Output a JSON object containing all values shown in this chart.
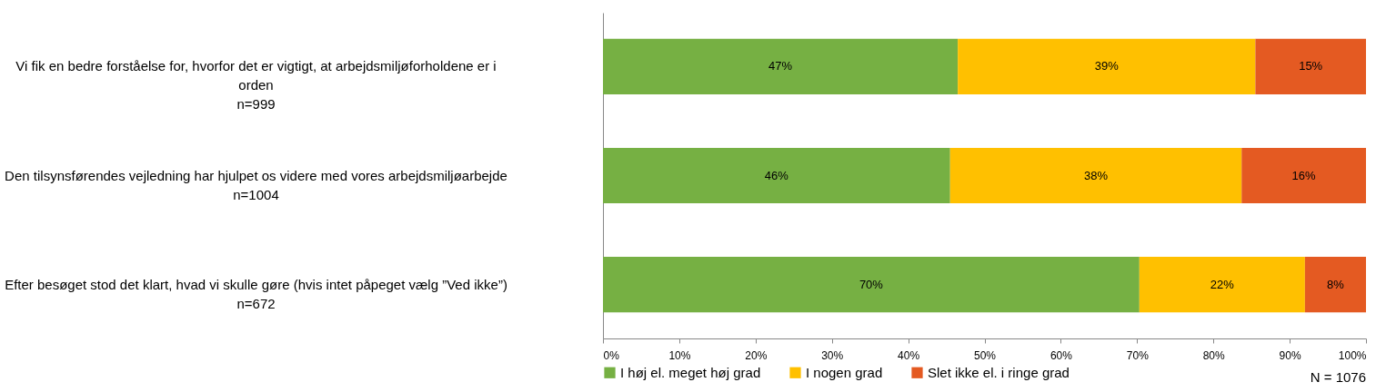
{
  "chart_data": {
    "type": "bar",
    "orientation": "horizontal",
    "stacked": true,
    "categories": [
      "Vi fik en bedre forståelse for, hvorfor det er vigtigt, at arbejdsmiljøforholdene er i orden\nn=999",
      "Den tilsynsførendes vejledning har hjulpet os videre med vores arbejdsmiljøarbejde\nn=1004",
      "Efter besøget stod det klart, hvad vi skulle gøre (hvis intet påpeget vælg ”Ved ikke”)\nn=672"
    ],
    "series": [
      {
        "name": "I høj el. meget høj grad",
        "color": "#76b043",
        "values": [
          46.5,
          45.5,
          70.3
        ],
        "value_labels": [
          "47%",
          "46%",
          "70%"
        ]
      },
      {
        "name": "I nogen grad",
        "color": "#ffc000",
        "values": [
          39,
          38.2,
          21.7
        ],
        "value_labels": [
          "39%",
          "38%",
          "22%"
        ]
      },
      {
        "name": "Slet ikke el. i ringe grad",
        "color": "#e45a22",
        "values": [
          14.5,
          16.3,
          8
        ],
        "value_labels": [
          "15%",
          "16%",
          "8%"
        ]
      }
    ],
    "xlim": [
      0,
      100
    ],
    "xticks": [
      {
        "value": 0,
        "label": "0%"
      },
      {
        "value": 10,
        "label": "10%"
      },
      {
        "value": 20,
        "label": "20%"
      },
      {
        "value": 30,
        "label": "30%"
      },
      {
        "value": 40,
        "label": "40%"
      },
      {
        "value": 50,
        "label": "50%"
      },
      {
        "value": 60,
        "label": "60%"
      },
      {
        "value": 70,
        "label": "70%"
      },
      {
        "value": 80,
        "label": "80%"
      },
      {
        "value": 90,
        "label": "90%"
      },
      {
        "value": 100,
        "label": "100%"
      }
    ],
    "grid": false,
    "legend": "bottom",
    "annotations": [
      "N = 1076"
    ]
  }
}
